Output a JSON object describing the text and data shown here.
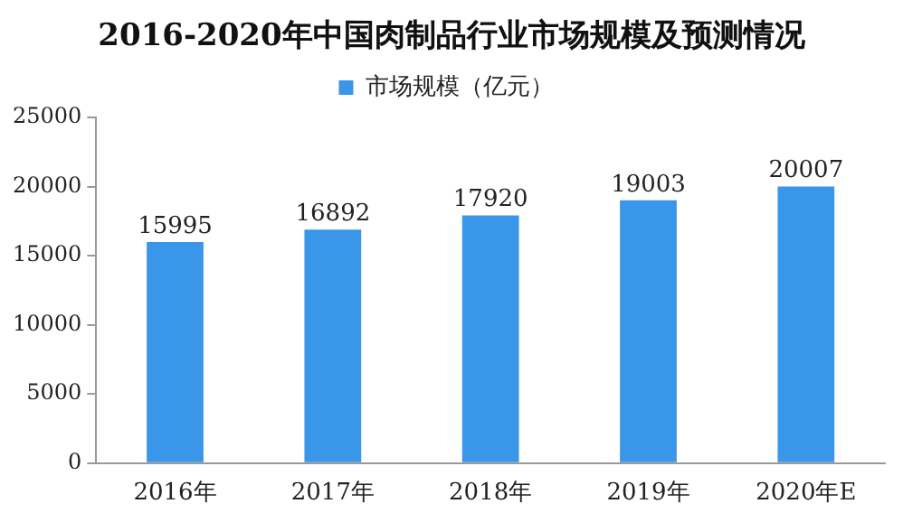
{
  "chart_data": {
    "type": "bar",
    "title": "2016-2020年中国肉制品行业市场规模及预测情况",
    "categories": [
      "2016年",
      "2017年",
      "2018年",
      "2019年",
      "2020年E"
    ],
    "series": [
      {
        "name": "市场规模（亿元）",
        "color": "#3a96e8",
        "values": [
          15995,
          16892,
          17920,
          19003,
          20007
        ]
      }
    ],
    "ylim": [
      0,
      25000
    ],
    "yticks": [
      0,
      5000,
      10000,
      15000,
      20000,
      25000
    ],
    "grid": false,
    "legend": "top",
    "data_labels": true
  }
}
